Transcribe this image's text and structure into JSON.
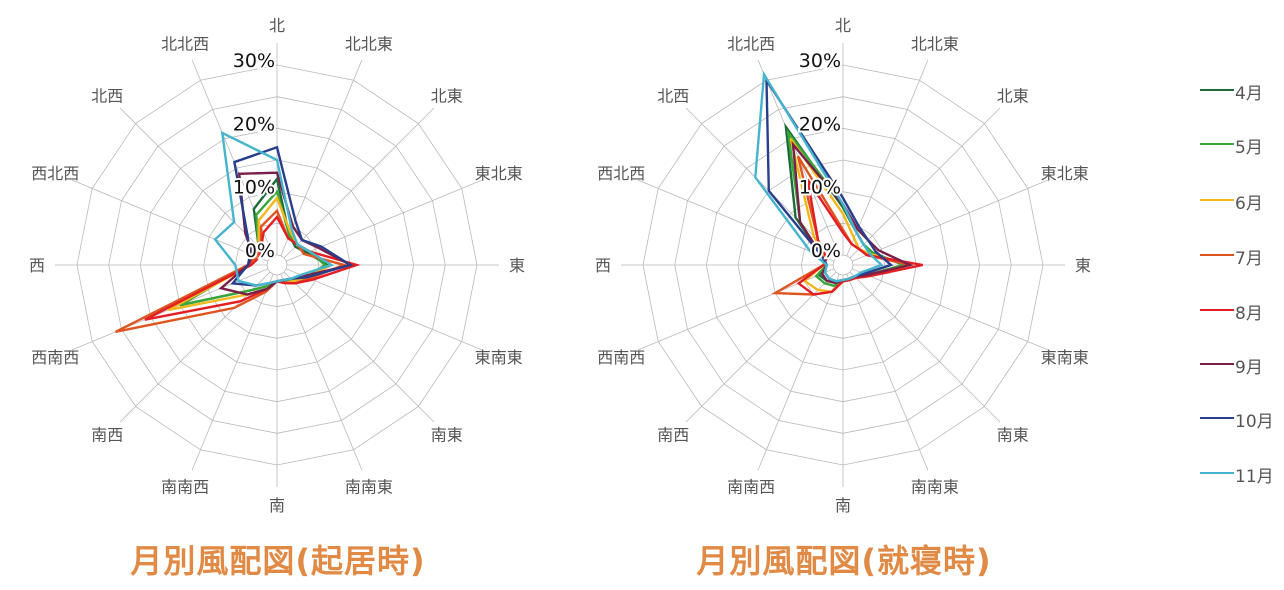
{
  "charts": [
    {
      "title": "月別風配図(起居時)"
    },
    {
      "title": "月別風配図(就寝時)"
    }
  ],
  "legend": [
    {
      "label": "4月",
      "color": "#1e6b3a"
    },
    {
      "label": "5月",
      "color": "#3aa63a"
    },
    {
      "label": "6月",
      "color": "#f2b71b"
    },
    {
      "label": "7月",
      "color": "#e0541f"
    },
    {
      "label": "8月",
      "color": "#e31e24"
    },
    {
      "label": "9月",
      "color": "#7a1f4a"
    },
    {
      "label": "10月",
      "color": "#283d8c"
    },
    {
      "label": "11月",
      "color": "#47b4cd"
    }
  ],
  "chart_data": [
    {
      "type": "radar",
      "title": "月別風配図(起居時)",
      "directions": [
        "北",
        "北北東",
        "北東",
        "東北東",
        "東",
        "東南東",
        "南東",
        "南南東",
        "南",
        "南南西",
        "南西",
        "西南西",
        "西",
        "西北西",
        "北西",
        "北北西"
      ],
      "axis_ticks": [
        "0%",
        "10%",
        "20%",
        "30%"
      ],
      "range": [
        0,
        30
      ],
      "series": [
        {
          "name": "4月",
          "values": [
            12,
            3.5,
            2.5,
            3.5,
            6.5,
            3.5,
            2,
            1.2,
            1,
            2,
            4,
            15,
            3,
            2,
            2.5,
            8
          ]
        },
        {
          "name": "5月",
          "values": [
            10,
            3.5,
            3,
            4,
            6,
            3.5,
            2,
            1.2,
            1,
            2,
            4,
            15,
            3,
            2.5,
            2.5,
            7
          ]
        },
        {
          "name": "6月",
          "values": [
            9,
            4,
            3,
            4,
            7,
            3.5,
            2,
            1.5,
            1,
            2.5,
            5,
            17,
            2.5,
            2,
            2.5,
            6
          ]
        },
        {
          "name": "7月",
          "values": [
            7,
            3,
            3,
            3,
            9,
            4,
            2.5,
            1.5,
            1,
            3,
            8,
            26,
            3,
            2,
            2,
            5
          ]
        },
        {
          "name": "8月",
          "values": [
            6,
            3,
            3,
            4,
            11,
            4.5,
            2.5,
            1.5,
            1,
            2.5,
            6.5,
            21,
            2.5,
            1.5,
            2,
            4
          ]
        },
        {
          "name": "9月",
          "values": [
            13,
            5,
            4,
            5.5,
            10,
            3,
            1.5,
            1,
            1,
            2.5,
            5,
            8,
            3,
            2.5,
            5.5,
            14
          ]
        },
        {
          "name": "10月",
          "values": [
            17,
            6,
            4,
            6,
            10,
            3.5,
            1.5,
            1,
            1,
            1.5,
            3,
            6,
            3,
            3,
            5,
            16
          ]
        },
        {
          "name": "11月",
          "values": [
            15,
            4.5,
            3,
            4,
            7,
            2.5,
            1.5,
            1,
            1,
            1.5,
            3,
            5,
            5,
            9,
            8,
            21
          ]
        }
      ]
    },
    {
      "type": "radar",
      "title": "月別風配図(就寝時)",
      "directions": [
        "北",
        "北北東",
        "北東",
        "東北東",
        "東",
        "東南東",
        "南東",
        "南南東",
        "南",
        "南南西",
        "南西",
        "西南西",
        "西",
        "西北西",
        "北西",
        "北北西"
      ],
      "axis_ticks": [
        "0%",
        "10%",
        "20%",
        "30%"
      ],
      "range": [
        0,
        30
      ],
      "series": [
        {
          "name": "4月",
          "values": [
            7.5,
            4,
            3,
            3.5,
            8,
            2.5,
            1,
            0.8,
            0.8,
            1.3,
            2,
            2.5,
            1,
            2,
            9,
            22
          ]
        },
        {
          "name": "5月",
          "values": [
            8,
            4,
            3,
            3.5,
            8,
            2.5,
            1,
            0.8,
            0.8,
            2,
            2.5,
            3,
            1,
            2,
            8,
            21
          ]
        },
        {
          "name": "6月",
          "values": [
            6.5,
            3,
            2,
            3,
            9,
            3,
            1.3,
            1,
            1,
            3,
            4,
            5,
            1.5,
            1.5,
            5,
            20
          ]
        },
        {
          "name": "7月",
          "values": [
            4,
            2,
            2,
            2.5,
            9,
            2.5,
            1.3,
            1,
            1,
            3,
            5,
            10,
            1.5,
            1.2,
            4,
            17
          ]
        },
        {
          "name": "8月",
          "values": [
            3.5,
            2,
            2,
            2.5,
            11,
            3,
            1.3,
            1,
            1,
            3,
            5,
            6,
            1.5,
            1.2,
            4,
            13
          ]
        },
        {
          "name": "9月",
          "values": [
            8,
            4.5,
            4,
            4.5,
            9,
            2.5,
            1,
            0.8,
            0.8,
            1.5,
            2,
            2,
            1,
            2,
            8,
            19
          ]
        },
        {
          "name": "10月",
          "values": [
            9,
            5,
            4,
            4,
            6,
            2,
            1,
            0.8,
            0.8,
            1.2,
            1.5,
            1.5,
            1,
            2,
            15,
            30
          ]
        },
        {
          "name": "11月",
          "values": [
            8,
            4,
            3,
            3,
            4.5,
            1.5,
            1,
            0.8,
            0.8,
            1.2,
            1.5,
            1.5,
            1,
            4,
            18,
            31
          ]
        }
      ]
    }
  ]
}
